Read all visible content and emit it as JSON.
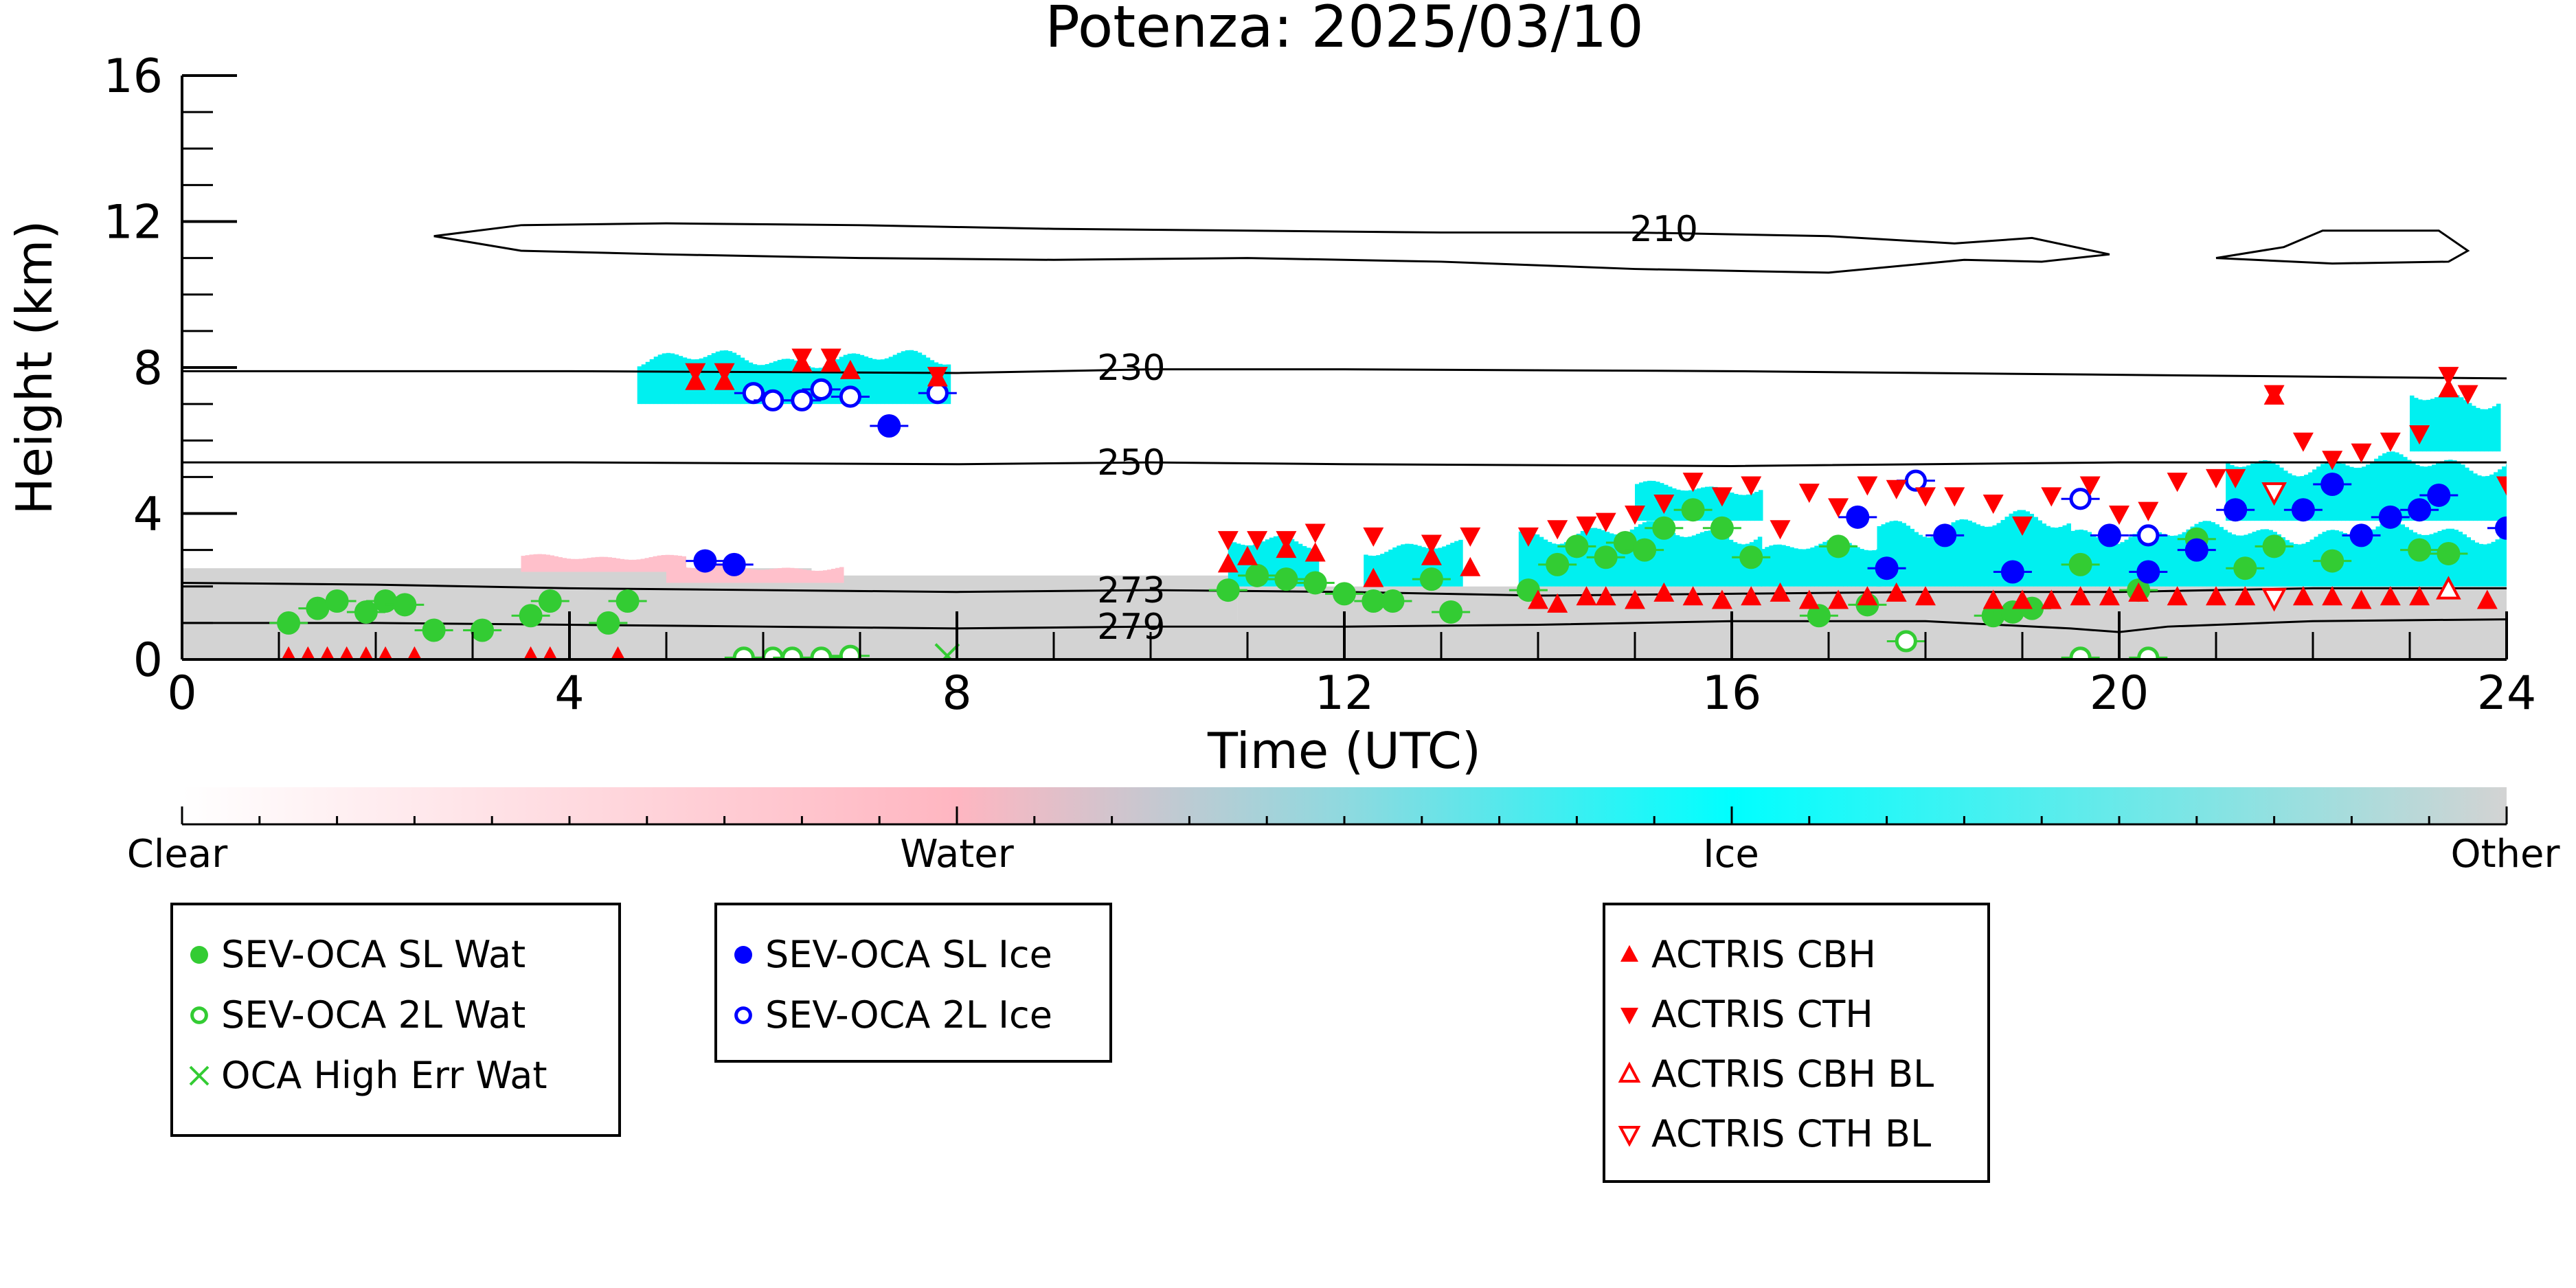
{
  "chart_data": {
    "type": "scatter",
    "title": "Potenza: 2025/03/10",
    "xlabel": "Time (UTC)",
    "ylabel": "Height (km)",
    "xlim": [
      0,
      24
    ],
    "ylim": [
      0,
      16
    ],
    "xticks": [
      0,
      4,
      8,
      12,
      16,
      20,
      24
    ],
    "yticks": [
      0,
      4,
      8,
      12,
      16
    ],
    "colorbar": {
      "labels": [
        "Clear",
        "Water",
        "Ice",
        "Other"
      ],
      "colors": [
        "#ffffff",
        "#ffb6c1",
        "#00ffff",
        "#d3d3d3"
      ]
    },
    "contours": [
      {
        "label": "210",
        "x": [
          2.6,
          3.5,
          5,
          7,
          9,
          11,
          13,
          15,
          17,
          18.3,
          19.1,
          19.9,
          19.2,
          18.4,
          17,
          15,
          13,
          11,
          9,
          7,
          5,
          3.5,
          2.6
        ],
        "y": [
          11.6,
          11.9,
          11.95,
          11.9,
          11.8,
          11.75,
          11.7,
          11.7,
          11.6,
          11.4,
          11.55,
          11.1,
          10.9,
          10.95,
          10.6,
          10.7,
          10.9,
          11.0,
          10.95,
          11.0,
          11.1,
          11.2,
          11.6
        ]
      },
      {
        "label": "",
        "x": [
          21.0,
          21.7,
          22.1,
          23.3,
          23.6,
          23.4,
          22.2,
          21.4,
          21.0
        ],
        "y": [
          11.0,
          11.3,
          11.75,
          11.75,
          11.2,
          10.9,
          10.85,
          10.95,
          11.0
        ]
      },
      {
        "label": "230",
        "x": [
          0,
          4,
          8,
          10,
          12,
          16,
          20,
          24
        ],
        "y": [
          7.9,
          7.9,
          7.85,
          7.95,
          7.95,
          7.9,
          7.8,
          7.7
        ]
      },
      {
        "label": "250",
        "x": [
          0,
          4,
          8,
          10,
          12,
          16,
          20,
          24
        ],
        "y": [
          5.4,
          5.4,
          5.35,
          5.4,
          5.35,
          5.3,
          5.4,
          5.4
        ]
      },
      {
        "label": "273",
        "x": [
          0,
          2,
          4,
          6,
          8,
          10,
          12,
          14,
          16,
          18,
          20,
          22,
          24
        ],
        "y": [
          2.1,
          2.05,
          1.95,
          1.9,
          1.85,
          1.9,
          1.85,
          1.75,
          1.8,
          1.85,
          1.85,
          1.95,
          1.95
        ]
      },
      {
        "label": "279",
        "x": [
          0,
          2,
          4,
          6,
          8,
          10,
          12,
          14,
          16,
          18,
          19.5,
          20,
          20.5,
          22,
          24
        ],
        "y": [
          1.0,
          1.0,
          0.95,
          0.9,
          0.85,
          0.9,
          0.9,
          0.95,
          1.05,
          1.05,
          0.85,
          0.75,
          0.9,
          1.05,
          1.1
        ]
      }
    ],
    "background_regions": [
      {
        "type": "Other",
        "x0": 0,
        "x1": 24,
        "y0": 0,
        "y1": 1.05
      },
      {
        "type": "Other",
        "x0": 0,
        "x1": 6.5,
        "y0": 1.0,
        "y1": 2.5
      },
      {
        "type": "Other",
        "x0": 6.5,
        "x1": 10.9,
        "y0": 1.0,
        "y1": 2.3
      },
      {
        "type": "Other",
        "x0": 10.9,
        "x1": 24,
        "y0": 1.0,
        "y1": 2.0
      }
    ],
    "ice_regions": [
      {
        "x0": 4.7,
        "x1": 7.9,
        "y0": 7.0,
        "y1": 8.5
      },
      {
        "x0": 10.8,
        "x1": 11.7,
        "y0": 2.0,
        "y1": 3.4
      },
      {
        "x0": 12.2,
        "x1": 13.2,
        "y0": 2.0,
        "y1": 3.3
      },
      {
        "x0": 13.8,
        "x1": 16.3,
        "y0": 2.0,
        "y1": 3.8
      },
      {
        "x0": 15.0,
        "x1": 16.3,
        "y0": 3.8,
        "y1": 4.9
      },
      {
        "x0": 16.3,
        "x1": 17.5,
        "y0": 2.0,
        "y1": 3.3
      },
      {
        "x0": 17.5,
        "x1": 19.5,
        "y0": 2.0,
        "y1": 4.1
      },
      {
        "x0": 19.5,
        "x1": 24.0,
        "y0": 2.0,
        "y1": 3.8
      },
      {
        "x0": 21.1,
        "x1": 24.0,
        "y0": 3.8,
        "y1": 5.7
      },
      {
        "x0": 23.0,
        "x1": 23.9,
        "y0": 5.7,
        "y1": 7.5
      }
    ],
    "water_regions": [
      {
        "x0": 3.5,
        "x1": 5.2,
        "y0": 2.4,
        "y1": 2.9
      },
      {
        "x0": 5.0,
        "x1": 6.8,
        "y0": 2.1,
        "y1": 2.6
      }
    ],
    "series": [
      {
        "name": "SEV-OCA SL Wat",
        "marker": "circle-filled",
        "color": "#33cc33",
        "x": [
          1.1,
          1.4,
          1.6,
          1.9,
          2.1,
          2.3,
          2.6,
          3.1,
          3.6,
          3.8,
          4.4,
          4.6,
          10.8,
          11.1,
          11.4,
          11.7,
          12.0,
          12.3,
          12.5,
          12.9,
          13.1,
          13.9,
          14.2,
          14.4,
          14.7,
          14.9,
          15.1,
          15.3,
          15.6,
          15.9,
          16.2,
          16.9,
          17.1,
          17.4,
          18.7,
          18.9,
          19.1,
          19.6,
          20.2,
          20.8,
          21.3,
          21.6,
          22.2,
          23.1,
          23.4
        ],
        "y": [
          1.0,
          1.4,
          1.6,
          1.3,
          1.6,
          1.5,
          0.8,
          0.8,
          1.2,
          1.6,
          1.0,
          1.6,
          1.9,
          2.3,
          2.2,
          2.1,
          1.8,
          1.6,
          1.6,
          2.2,
          1.3,
          1.9,
          2.6,
          3.1,
          2.8,
          3.2,
          3.0,
          3.6,
          4.1,
          3.6,
          2.8,
          1.2,
          3.1,
          1.5,
          1.2,
          1.3,
          1.4,
          2.6,
          1.9,
          3.3,
          2.5,
          3.1,
          2.7,
          3.0,
          2.9
        ]
      },
      {
        "name": "SEV-OCA 2L Wat",
        "marker": "circle-open",
        "color": "#33cc33",
        "x": [
          5.8,
          6.1,
          6.3,
          6.6,
          6.9,
          17.8,
          19.6,
          20.3
        ],
        "y": [
          0.05,
          0.05,
          0.05,
          0.05,
          0.1,
          0.5,
          0.05,
          0.05
        ]
      },
      {
        "name": "OCA High Err Wat",
        "marker": "x",
        "color": "#33cc33",
        "x": [
          7.9
        ],
        "y": [
          0.1
        ]
      },
      {
        "name": "SEV-OCA SL Ice",
        "marker": "circle-filled",
        "color": "#0000ff",
        "x": [
          5.4,
          5.7,
          7.3,
          17.3,
          17.6,
          18.2,
          18.9,
          19.9,
          20.3,
          20.8,
          21.2,
          21.9,
          22.2,
          22.5,
          22.8,
          23.1,
          23.3,
          24.0
        ],
        "y": [
          2.7,
          2.6,
          6.4,
          3.9,
          2.5,
          3.4,
          2.4,
          3.4,
          2.4,
          3.0,
          4.1,
          4.1,
          4.8,
          3.4,
          3.9,
          4.1,
          4.5,
          3.6
        ]
      },
      {
        "name": "SEV-OCA 2L Ice",
        "marker": "circle-open",
        "color": "#0000ff",
        "x": [
          5.9,
          6.1,
          6.4,
          6.6,
          6.9,
          7.8,
          17.9,
          19.6,
          20.3
        ],
        "y": [
          7.3,
          7.1,
          7.1,
          7.4,
          7.2,
          7.3,
          4.9,
          4.4,
          3.4
        ]
      },
      {
        "name": "ACTRIS CBH",
        "marker": "triangle-up",
        "color": "#ff0000",
        "x": [
          1.1,
          1.3,
          1.5,
          1.7,
          1.9,
          2.1,
          2.4,
          3.6,
          3.8,
          4.5,
          5.3,
          5.6,
          6.4,
          6.7,
          6.9,
          7.8,
          10.8,
          11.0,
          11.4,
          11.7,
          12.3,
          12.9,
          13.3,
          14.0,
          14.2,
          14.5,
          14.7,
          15.0,
          15.3,
          15.6,
          15.9,
          16.2,
          16.5,
          16.8,
          17.1,
          17.4,
          17.7,
          18.0,
          18.7,
          19.0,
          19.3,
          19.6,
          19.9,
          20.2,
          20.6,
          21.0,
          21.3,
          21.6,
          21.9,
          22.2,
          22.5,
          22.8,
          23.1,
          23.4,
          23.8
        ],
        "y": [
          0.05,
          0.05,
          0.05,
          0.05,
          0.05,
          0.05,
          0.05,
          0.05,
          0.05,
          0.05,
          7.6,
          7.6,
          8.1,
          8.1,
          7.9,
          7.7,
          2.6,
          2.8,
          3.0,
          2.9,
          2.2,
          2.8,
          2.5,
          1.6,
          1.5,
          1.7,
          1.7,
          1.6,
          1.8,
          1.7,
          1.6,
          1.7,
          1.8,
          1.6,
          1.6,
          1.7,
          1.8,
          1.7,
          1.6,
          1.6,
          1.6,
          1.7,
          1.7,
          1.8,
          1.7,
          1.7,
          1.7,
          7.2,
          1.7,
          1.7,
          1.6,
          1.7,
          1.7,
          7.4,
          1.6
        ]
      },
      {
        "name": "ACTRIS CTH",
        "marker": "triangle-down",
        "color": "#ff0000",
        "x": [
          5.3,
          5.6,
          6.4,
          6.7,
          7.8,
          10.8,
          11.1,
          11.4,
          11.7,
          12.3,
          12.9,
          13.3,
          13.9,
          14.2,
          14.5,
          14.7,
          15.0,
          15.3,
          15.6,
          15.9,
          16.2,
          16.5,
          16.8,
          17.1,
          17.4,
          17.7,
          18.0,
          18.3,
          18.7,
          19.0,
          19.3,
          19.7,
          20.0,
          20.3,
          20.6,
          21.0,
          21.2,
          21.6,
          21.9,
          22.2,
          22.5,
          22.8,
          23.1,
          23.4,
          23.6,
          24.0
        ],
        "y": [
          7.9,
          7.9,
          8.3,
          8.3,
          7.8,
          3.3,
          3.3,
          3.3,
          3.5,
          3.4,
          3.2,
          3.4,
          3.4,
          3.6,
          3.7,
          3.8,
          4.0,
          4.3,
          4.9,
          4.5,
          4.8,
          3.6,
          4.6,
          4.2,
          4.8,
          4.7,
          4.5,
          4.5,
          4.3,
          3.7,
          4.5,
          4.8,
          4.0,
          4.1,
          4.9,
          5.0,
          5.0,
          7.3,
          6.0,
          5.5,
          5.7,
          6.0,
          6.2,
          7.8,
          7.3,
          4.8
        ]
      },
      {
        "name": "ACTRIS CBH BL",
        "marker": "triangle-up-open",
        "color": "#ff0000",
        "x": [
          23.4
        ],
        "y": [
          1.9
        ]
      },
      {
        "name": "ACTRIS CTH BL",
        "marker": "triangle-down-open",
        "color": "#ff0000",
        "x": [
          21.6,
          21.6
        ],
        "y": [
          4.6,
          1.7
        ]
      }
    ],
    "legend": {
      "water_group": [
        "SEV-OCA SL Wat",
        "SEV-OCA 2L Wat",
        "OCA High Err Wat"
      ],
      "ice_group": [
        "SEV-OCA SL Ice",
        "SEV-OCA 2L Ice"
      ],
      "actris_group": [
        "ACTRIS CBH",
        "ACTRIS CTH",
        "ACTRIS CBH BL",
        "ACTRIS CTH BL"
      ]
    }
  }
}
